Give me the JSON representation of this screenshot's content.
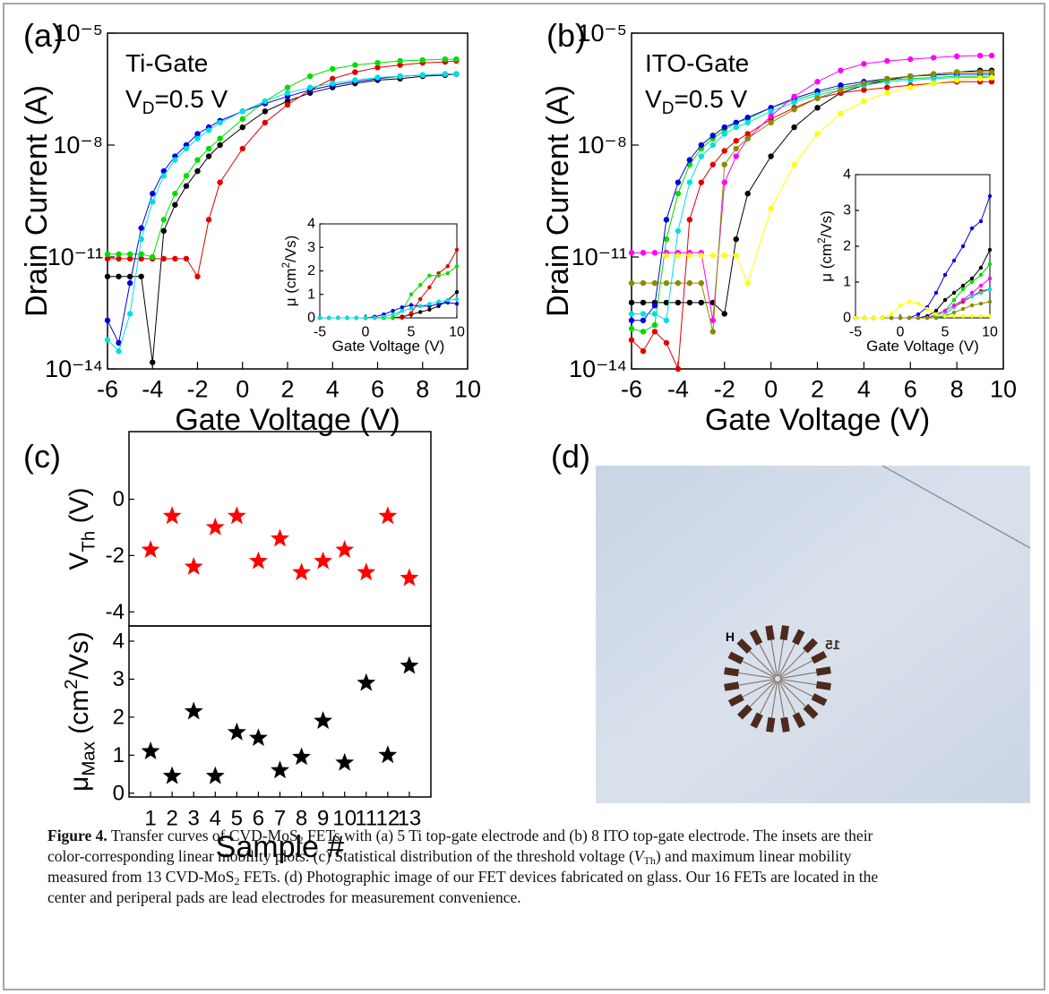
{
  "chart_data": [
    {
      "type": "line",
      "panel": "(a)",
      "y_scale": "log",
      "annotation": "Ti-Gate",
      "condition": [
        "V",
        "D",
        "=0.5 V"
      ],
      "x_label": "Gate Voltage (V)",
      "y_label": "Drain Current (A)",
      "x": [
        -6,
        -5.5,
        -5,
        -4.5,
        -4,
        -3.5,
        -3,
        -2.5,
        -2,
        -1.5,
        -1,
        0,
        1,
        2,
        3,
        4,
        5,
        6,
        7,
        8,
        9,
        9.5
      ],
      "xlim": [
        -6,
        10
      ],
      "xticks": [
        -6,
        -4,
        -2,
        0,
        2,
        4,
        6,
        8,
        10
      ],
      "ylim": [
        1e-14,
        1e-05
      ],
      "yticks": [
        {
          "value": 1e-14,
          "label": "10⁻¹⁴"
        },
        {
          "value": 1e-11,
          "label": "10⁻¹¹"
        },
        {
          "value": 1e-08,
          "label": "10⁻⁸"
        },
        {
          "value": 1e-05,
          "label": "10⁻⁵"
        }
      ],
      "series": [
        {
          "color": "#000000",
          "values": [
            3e-12,
            3e-12,
            3e-12,
            3e-12,
            1.5e-14,
            5e-11,
            2.5e-10,
            8e-10,
            2e-09,
            5e-09,
            1e-08,
            3e-08,
            8e-08,
            1.5e-07,
            2.5e-07,
            3.5e-07,
            4.5e-07,
            5.5e-07,
            6e-07,
            7e-07,
            7.5e-07,
            8e-07
          ]
        },
        {
          "color": "#e00000",
          "values": [
            9e-12,
            9e-12,
            9e-12,
            9e-12,
            9e-12,
            9e-12,
            9e-12,
            9e-12,
            3e-12,
            1e-10,
            1e-09,
            8e-09,
            4e-08,
            1.2e-07,
            3e-07,
            6e-07,
            9e-07,
            1.2e-06,
            1.4e-06,
            1.6e-06,
            1.7e-06,
            1.8e-06
          ]
        },
        {
          "color": "#00dd00",
          "values": [
            1.2e-11,
            1.2e-11,
            1.2e-11,
            1.2e-11,
            1e-11,
            1e-10,
            5e-10,
            1.5e-09,
            4e-09,
            8e-09,
            1.5e-08,
            5e-08,
            1.5e-07,
            3.5e-07,
            7e-07,
            1.1e-06,
            1.4e-06,
            1.6e-06,
            1.8e-06,
            1.9e-06,
            2e-06,
            2e-06
          ]
        },
        {
          "color": "#0000e0",
          "values": [
            2e-13,
            5e-14,
            2e-12,
            6e-11,
            5e-10,
            2e-09,
            5e-09,
            1e-08,
            2e-08,
            3e-08,
            4.5e-08,
            8e-08,
            1.3e-07,
            2e-07,
            3e-07,
            4e-07,
            5e-07,
            6e-07,
            7e-07,
            7.5e-07,
            8e-07,
            8e-07
          ]
        },
        {
          "color": "#00e0e0",
          "values": [
            6e-14,
            3e-14,
            3e-13,
            3e-11,
            3e-10,
            1.5e-09,
            4e-09,
            8e-09,
            1.5e-08,
            2.5e-08,
            4e-08,
            8e-08,
            1.5e-07,
            2.5e-07,
            3.5e-07,
            4.5e-07,
            5.5e-07,
            6.5e-07,
            7e-07,
            7.5e-07,
            8e-07,
            8e-07
          ]
        }
      ]
    },
    {
      "type": "line",
      "x_label": "Gate Voltage (V)",
      "y_label": [
        "μ (cm",
        "2",
        "/Vs)"
      ],
      "x": [
        -5,
        -4,
        -3,
        -2,
        -1,
        0,
        1,
        2,
        3,
        4,
        5,
        6,
        7,
        8,
        9,
        10
      ],
      "xlim": [
        -5,
        10
      ],
      "xticks": [
        -5,
        0,
        5,
        10
      ],
      "ylim": [
        0,
        4
      ],
      "yticks": [
        0,
        1,
        2,
        3,
        4
      ],
      "series": [
        {
          "color": "#000000",
          "values": [
            0,
            0,
            0,
            0,
            0,
            0,
            0,
            0,
            0,
            0.05,
            0.15,
            0.25,
            0.35,
            0.5,
            0.75,
            1.1
          ]
        },
        {
          "color": "#e00000",
          "values": [
            0,
            0,
            0,
            0,
            0,
            0,
            0,
            0,
            0,
            0,
            0.2,
            0.8,
            1.3,
            1.9,
            2.2,
            2.9
          ]
        },
        {
          "color": "#00dd00",
          "values": [
            0,
            0,
            0,
            0,
            0,
            0,
            0,
            0,
            0,
            0.3,
            1.0,
            1.4,
            1.8,
            1.8,
            1.9,
            2.2
          ]
        },
        {
          "color": "#0000e0",
          "values": [
            0,
            0,
            0,
            0,
            0,
            0,
            0.05,
            0.15,
            0.3,
            0.45,
            0.55,
            0.5,
            0.5,
            0.6,
            0.65,
            0.6
          ]
        },
        {
          "color": "#00e0e0",
          "values": [
            0,
            0,
            0,
            0,
            0,
            0,
            0,
            0.05,
            0.15,
            0.3,
            0.4,
            0.5,
            0.6,
            0.7,
            0.75,
            0.8
          ]
        }
      ]
    },
    {
      "type": "line",
      "panel": "(b)",
      "y_scale": "log",
      "annotation": "ITO-Gate",
      "condition": [
        "V",
        "D",
        "=0.5 V"
      ],
      "x_label": "Gate Voltage (V)",
      "y_label": "Drain Current (A)",
      "x": [
        -6,
        -5.5,
        -5,
        -4.5,
        -4,
        -3.5,
        -3,
        -2.5,
        -2,
        -1.5,
        -1,
        0,
        1,
        2,
        3,
        4,
        5,
        6,
        7,
        8,
        9,
        9.5
      ],
      "xlim": [
        -6,
        10
      ],
      "xticks": [
        -6,
        -4,
        -2,
        0,
        2,
        4,
        6,
        8,
        10
      ],
      "ylim": [
        1e-14,
        1e-05
      ],
      "yticks": [
        {
          "value": 1e-14,
          "label": "10⁻¹⁴"
        },
        {
          "value": 1e-11,
          "label": "10⁻¹¹"
        },
        {
          "value": 1e-08,
          "label": "10⁻⁸"
        },
        {
          "value": 1e-05,
          "label": "10⁻⁵"
        }
      ],
      "series": [
        {
          "color": "#000000",
          "values": [
            6e-13,
            6e-13,
            6e-13,
            6e-13,
            6e-13,
            6e-13,
            6e-13,
            6e-13,
            3e-13,
            3e-11,
            5e-10,
            5e-09,
            3e-08,
            1e-07,
            2.5e-07,
            4e-07,
            5.5e-07,
            7e-07,
            8e-07,
            9e-07,
            1e-06,
            1e-06
          ]
        },
        {
          "color": "#e00000",
          "values": [
            6e-14,
            3e-14,
            1e-13,
            5e-14,
            1e-14,
            1e-10,
            1e-09,
            3e-09,
            7e-09,
            1.3e-08,
            2e-08,
            5e-08,
            1e-07,
            1.8e-07,
            2.5e-07,
            3e-07,
            3.5e-07,
            4e-07,
            4.5e-07,
            5e-07,
            5e-07,
            5e-07
          ]
        },
        {
          "color": "#00dd00",
          "values": [
            1.2e-13,
            1e-13,
            1.5e-13,
            3e-11,
            5e-10,
            3e-09,
            8e-09,
            1.5e-08,
            2.5e-08,
            4e-08,
            5e-08,
            1e-07,
            1.6e-07,
            2.5e-07,
            3.5e-07,
            4.5e-07,
            5.5e-07,
            6e-07,
            6.5e-07,
            7e-07,
            7e-07,
            7e-07
          ]
        },
        {
          "color": "#0000e0",
          "values": [
            2e-13,
            2e-13,
            5e-13,
            1e-10,
            1e-09,
            4e-09,
            1e-08,
            1.8e-08,
            3e-08,
            4e-08,
            5.5e-08,
            1e-07,
            1.8e-07,
            2.8e-07,
            4e-07,
            5e-07,
            6e-07,
            7e-07,
            7.5e-07,
            8e-07,
            8e-07,
            8e-07
          ]
        },
        {
          "color": "#00e0e0",
          "values": [
            3e-13,
            3e-13,
            3e-13,
            2e-13,
            5e-11,
            1e-09,
            5e-09,
            1e-08,
            2e-08,
            3e-08,
            4e-08,
            8e-08,
            1.4e-07,
            2.2e-07,
            3e-07,
            4e-07,
            5e-07,
            5.5e-07,
            6e-07,
            6.5e-07,
            6.5e-07,
            6.5e-07
          ]
        },
        {
          "color": "#ff00ff",
          "values": [
            1.3e-11,
            1.3e-11,
            1.3e-11,
            1.3e-11,
            1.3e-11,
            1.3e-11,
            1.3e-11,
            2e-13,
            1e-09,
            5e-09,
            1.5e-08,
            6e-08,
            2e-07,
            5e-07,
            1e-06,
            1.5e-06,
            1.8e-06,
            2e-06,
            2.2e-06,
            2.4e-06,
            2.5e-06,
            2.5e-06
          ]
        },
        {
          "color": "#8b8b00",
          "values": [
            2e-12,
            2e-12,
            2e-12,
            2e-12,
            2e-12,
            2e-12,
            2e-12,
            1e-13,
            3e-09,
            8e-09,
            1.5e-08,
            4e-08,
            9e-08,
            1.8e-07,
            3e-07,
            4.5e-07,
            6e-07,
            7e-07,
            8e-07,
            9e-07,
            9e-07,
            9e-07
          ]
        },
        {
          "color": "#ffff00",
          "values": [
            null,
            null,
            null,
            1.1e-11,
            1.1e-11,
            1.1e-11,
            1.1e-11,
            1.1e-11,
            1.1e-11,
            1.1e-11,
            2e-12,
            2e-10,
            3e-09,
            2e-08,
            7e-08,
            1.5e-07,
            2.5e-07,
            3.5e-07,
            4.5e-07,
            5.5e-07,
            6e-07,
            6.5e-07
          ]
        }
      ]
    },
    {
      "type": "line",
      "x_label": "Gate Voltage (V)",
      "y_label": [
        "μ (cm",
        "2",
        "/Vs)"
      ],
      "x": [
        -5,
        -4,
        -3,
        -2,
        -1,
        0,
        1,
        2,
        3,
        4,
        5,
        6,
        7,
        8,
        9,
        10
      ],
      "xlim": [
        -5,
        10
      ],
      "xticks": [
        -5,
        0,
        5,
        10
      ],
      "ylim": [
        0,
        4
      ],
      "yticks": [
        0,
        1,
        2,
        3,
        4
      ],
      "series": [
        {
          "color": "#000000",
          "values": [
            0,
            0,
            0,
            0,
            0,
            0,
            0,
            0,
            0.05,
            0.2,
            0.5,
            0.7,
            0.9,
            1.1,
            1.4,
            1.9
          ]
        },
        {
          "color": "#e00000",
          "values": [
            0,
            0,
            0,
            0,
            0,
            0,
            0,
            0,
            0,
            0,
            0.1,
            0.3,
            0.45,
            0.6,
            0.75,
            0.8
          ]
        },
        {
          "color": "#00dd00",
          "values": [
            0,
            0,
            0,
            0,
            0,
            0,
            0,
            0,
            0,
            0.05,
            0.2,
            0.5,
            0.8,
            1.0,
            1.2,
            1.5
          ]
        },
        {
          "color": "#0000e0",
          "values": [
            0,
            0,
            0,
            0,
            0,
            0,
            0,
            0.1,
            0.3,
            0.7,
            1.2,
            1.6,
            2.0,
            2.5,
            2.7,
            3.4
          ]
        },
        {
          "color": "#00e0e0",
          "values": [
            0,
            0,
            0,
            0,
            0,
            0,
            0,
            0,
            0,
            0,
            0.1,
            0.3,
            0.5,
            0.6,
            0.7,
            0.8
          ]
        },
        {
          "color": "#ff00ff",
          "values": [
            0,
            0,
            0,
            0,
            0,
            0,
            0,
            0,
            0,
            0.1,
            0.2,
            0.35,
            0.5,
            0.7,
            0.9,
            1.1
          ]
        },
        {
          "color": "#8b8b00",
          "values": [
            0,
            0,
            0,
            0,
            0,
            0,
            0,
            0,
            0,
            0,
            0.05,
            0.15,
            0.25,
            0.35,
            0.4,
            0.45
          ]
        },
        {
          "color": "#ffff00",
          "values": [
            0,
            0,
            0,
            0,
            0.1,
            0.35,
            0.45,
            0.4,
            0.25,
            0.1,
            0.05,
            0.05,
            0.05,
            0.05,
            0.05,
            0.05
          ]
        }
      ]
    },
    {
      "type": "scatter",
      "panel": "(c)",
      "marker": "star",
      "color": "#ff0000",
      "y_label": [
        "V",
        "Th",
        " (V)"
      ],
      "values": [
        -1.8,
        -0.6,
        -2.4,
        -1.0,
        -0.6,
        -2.2,
        -1.4,
        -2.6,
        -2.2,
        -1.8,
        -2.6,
        -0.6,
        -2.8
      ],
      "ylim": [
        -4.5,
        2.4
      ],
      "yticks": [
        -4,
        -2,
        0
      ]
    },
    {
      "type": "scatter",
      "marker": "star",
      "color": "#000000",
      "x_label": "Sample #",
      "y_label": [
        "μ",
        "Max",
        " (cm",
        "2",
        "/Vs)"
      ],
      "categories": [
        "1",
        "2",
        "3",
        "4",
        "5",
        "6",
        "7",
        "8",
        "9",
        "10",
        "11",
        "12",
        "13"
      ],
      "values": [
        1.1,
        0.45,
        2.15,
        0.45,
        1.6,
        1.45,
        0.6,
        0.95,
        1.9,
        0.8,
        2.9,
        1.0,
        3.35
      ],
      "ylim": [
        -0.1,
        4.4
      ],
      "yticks": [
        0,
        1,
        2,
        3,
        4
      ]
    }
  ],
  "photo": {
    "panel": "(d)",
    "labels": [
      "H",
      "15"
    ]
  },
  "caption": {
    "label": "Figure 4.",
    "lines": [
      [
        " Transfer curves of CVD-MoS",
        "2",
        " FETs with (a) 5 Ti top-gate electrode and (b) 8 ITO top-gate electrode. The insets are their"
      ],
      [
        "color-corresponding linear mobility plots. (c) Statistical distribution of the threshold voltage (",
        "V",
        "Th",
        ") and maximum linear mobility"
      ],
      [
        "measured from 13 CVD-MoS",
        "2",
        " FETs. (d) Photographic image of our FET devices fabricated on glass. Our 16 FETs are located in the"
      ],
      [
        "center and periperal pads are lead electrodes for measurement convenience."
      ]
    ]
  }
}
